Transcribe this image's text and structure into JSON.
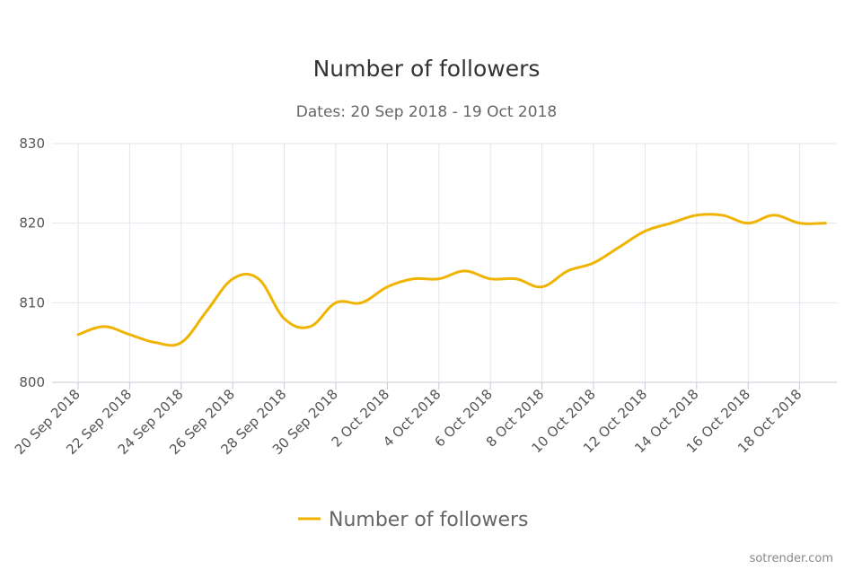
{
  "chart_data": {
    "type": "line",
    "title": "Number of followers",
    "subtitle": "Dates: 20 Sep 2018 - 19 Oct 2018",
    "xlabel": "",
    "ylabel": "",
    "ylim": [
      800,
      830
    ],
    "yticks": [
      "800",
      "810",
      "820",
      "830"
    ],
    "xtick_labels": [
      "20 Sep 2018",
      "22 Sep 2018",
      "24 Sep 2018",
      "26 Sep 2018",
      "28 Sep 2018",
      "30 Sep 2018",
      "2 Oct 2018",
      "4 Oct 2018",
      "6 Oct 2018",
      "8 Oct 2018",
      "10 Oct 2018",
      "12 Oct 2018",
      "14 Oct 2018",
      "16 Oct 2018",
      "18 Oct 2018"
    ],
    "x": [
      "2018-09-20",
      "2018-09-21",
      "2018-09-22",
      "2018-09-23",
      "2018-09-24",
      "2018-09-25",
      "2018-09-26",
      "2018-09-27",
      "2018-09-28",
      "2018-09-29",
      "2018-09-30",
      "2018-10-01",
      "2018-10-02",
      "2018-10-03",
      "2018-10-04",
      "2018-10-05",
      "2018-10-06",
      "2018-10-07",
      "2018-10-08",
      "2018-10-09",
      "2018-10-10",
      "2018-10-11",
      "2018-10-12",
      "2018-10-13",
      "2018-10-14",
      "2018-10-15",
      "2018-10-16",
      "2018-10-17",
      "2018-10-18",
      "2018-10-19"
    ],
    "series": [
      {
        "name": "Number of followers",
        "color": "#f0b400",
        "values": [
          806,
          807,
          806,
          805,
          805,
          809,
          813,
          813,
          808,
          807,
          810,
          810,
          812,
          813,
          813,
          814,
          813,
          813,
          812,
          814,
          815,
          817,
          819,
          820,
          821,
          821,
          820,
          821,
          820,
          820
        ]
      }
    ],
    "grid": true,
    "legend": "bottom-center"
  },
  "legend": {
    "label": "Number of followers"
  },
  "watermark": "sotrender.com"
}
